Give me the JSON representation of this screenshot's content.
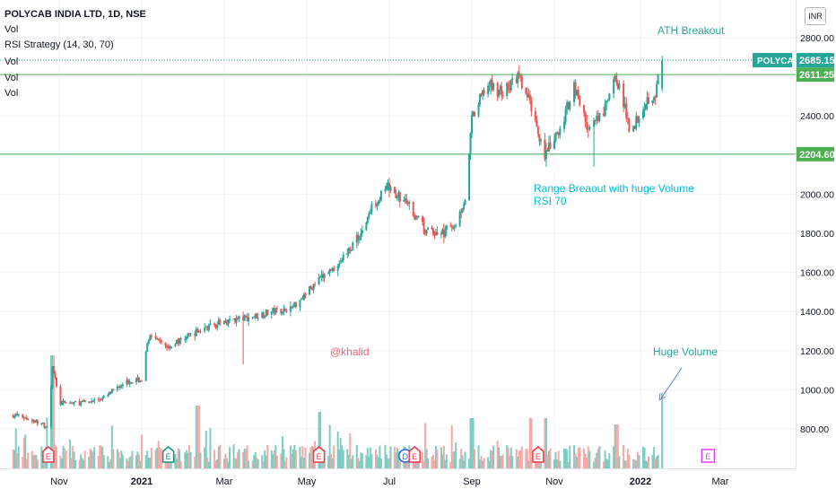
{
  "header": {
    "symbol_line": "POLYCAB INDIA LTD, 1D, NSE",
    "indicators": [
      "Vol",
      "RSI Strategy (14, 30, 70)",
      "Vol",
      "Vol",
      "Vol"
    ],
    "currency_button": "INR"
  },
  "chart_data": {
    "type": "candlestick",
    "symbol": "POLYCAB",
    "last_price": 2685.15,
    "last_price_label": "2685.15",
    "price_axis_ticks": [
      "2800.00",
      "2600.00",
      "2400.00",
      "2200.00",
      "2000.00",
      "1800.00",
      "1600.00",
      "1400.00",
      "1200.00",
      "1000.00",
      "800.00"
    ],
    "price_axis_values": [
      2800,
      2600,
      2400,
      2200,
      2000,
      1800,
      1600,
      1400,
      1200,
      1000,
      800
    ],
    "time_axis_ticks": [
      "Nov",
      "2021",
      "Mar",
      "May",
      "Jul",
      "Sep",
      "Nov",
      "2022",
      "Mar"
    ],
    "time_axis_dates": [
      "2020-11-01",
      "2021-01-01",
      "2021-03-01",
      "2021-05-01",
      "2021-07-01",
      "2021-09-01",
      "2021-11-01",
      "2022-01-01",
      "2022-03-01"
    ],
    "horizontal_lines": [
      {
        "value": 2611.25,
        "label": "2611.25",
        "color": "#4caf50"
      },
      {
        "value": 2204.6,
        "label": "2204.60",
        "color": "#4caf50"
      }
    ],
    "annotations": {
      "ath": "ATH Breakout",
      "range_line1": "Range Breaout with huge Volume",
      "range_line2": "RSI 70",
      "author": "@khalid",
      "huge_volume": "Huge Volume"
    },
    "price_path": [
      [
        "2020-10-01",
        870
      ],
      [
        "2020-10-12",
        845
      ],
      [
        "2020-10-24",
        810
      ],
      [
        "2020-10-27",
        1130
      ],
      [
        "2020-11-01",
        930
      ],
      [
        "2020-11-20",
        935
      ],
      [
        "2020-12-05",
        960
      ],
      [
        "2020-12-18",
        1040
      ],
      [
        "2021-01-01",
        1050
      ],
      [
        "2021-01-06",
        1270
      ],
      [
        "2021-01-20",
        1220
      ],
      [
        "2021-02-10",
        1300
      ],
      [
        "2021-03-01",
        1350
      ],
      [
        "2021-03-20",
        1370
      ],
      [
        "2021-04-05",
        1400
      ],
      [
        "2021-04-20",
        1420
      ],
      [
        "2021-05-01",
        1500
      ],
      [
        "2021-05-10",
        1560
      ],
      [
        "2021-05-25",
        1650
      ],
      [
        "2021-06-10",
        1800
      ],
      [
        "2021-06-20",
        1960
      ],
      [
        "2021-06-30",
        2030
      ],
      [
        "2021-07-15",
        1950
      ],
      [
        "2021-07-28",
        1810
      ],
      [
        "2021-08-10",
        1800
      ],
      [
        "2021-08-20",
        1850
      ],
      [
        "2021-08-28",
        2000
      ],
      [
        "2021-09-01",
        2380
      ],
      [
        "2021-09-12",
        2560
      ],
      [
        "2021-09-25",
        2520
      ],
      [
        "2021-10-05",
        2600
      ],
      [
        "2021-10-15",
        2450
      ],
      [
        "2021-10-25",
        2200
      ],
      [
        "2021-11-05",
        2320
      ],
      [
        "2021-11-15",
        2560
      ],
      [
        "2021-11-25",
        2330
      ],
      [
        "2021-12-05",
        2400
      ],
      [
        "2021-12-15",
        2600
      ],
      [
        "2021-12-25",
        2320
      ],
      [
        "2022-01-05",
        2480
      ],
      [
        "2022-01-12",
        2520
      ],
      [
        "2022-01-17",
        2685
      ]
    ],
    "volume_spikes": [
      [
        "2020-10-27",
        9
      ],
      [
        "2021-02-10",
        5
      ],
      [
        "2021-05-10",
        4.5
      ],
      [
        "2021-09-01",
        4
      ],
      [
        "2021-10-15",
        4
      ],
      [
        "2021-10-25",
        4
      ],
      [
        "2021-12-15",
        3.5
      ],
      [
        "2022-01-17",
        6
      ]
    ],
    "earnings_markers": [
      {
        "date": "2020-10-24",
        "label": "E",
        "color": "#f23645",
        "shape": "pentagon"
      },
      {
        "date": "2021-01-20",
        "label": "E",
        "color": "#089981",
        "shape": "pentagon"
      },
      {
        "date": "2021-05-10",
        "label": "E",
        "color": "#f23645",
        "shape": "pentagon"
      },
      {
        "date": "2021-07-13",
        "label": "D",
        "color": "#2962ff",
        "shape": "circle"
      },
      {
        "date": "2021-07-20",
        "label": "E",
        "color": "#f23645",
        "shape": "pentagon"
      },
      {
        "date": "2021-10-20",
        "label": "E",
        "color": "#f23645",
        "shape": "pentagon"
      },
      {
        "date": "2022-02-20",
        "label": "E",
        "color": "#e040fb",
        "shape": "square"
      }
    ],
    "colors": {
      "up": "#26a69a",
      "down": "#ef5350",
      "hline": "#4caf50",
      "annotation": "#2aa59b",
      "range_text": "#00bcd4",
      "author": "#f06273",
      "arrow": "#5b7be8",
      "axis_text": "#131722"
    },
    "title": "",
    "xlabel": "",
    "ylabel": ""
  }
}
